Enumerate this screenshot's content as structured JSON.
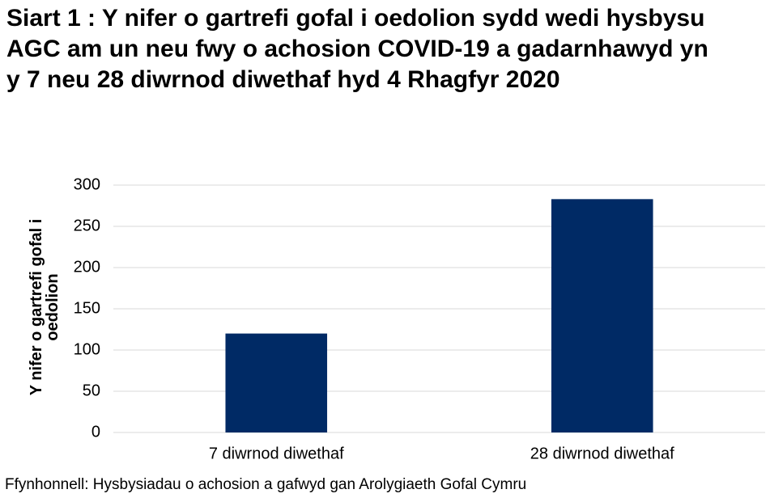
{
  "chart_data": {
    "type": "bar",
    "title": "Siart 1 : Y nifer o gartrefi gofal i oedolion sydd wedi hysbysu AGC am un neu fwy o achosion COVID-19 a gadarnhawyd yn y 7 neu 28 diwrnod diwethaf hyd 4 Rhagfyr 2020",
    "y_label": "Y nifer o gartrefi gofal i oedolion",
    "source": "Ffynhonnell: Hysbysiadau o achosion a gafwyd gan Arolygiaeth Gofal Cymru",
    "categories": [
      "7 diwrnod diwethaf",
      "28 diwrnod diwethaf"
    ],
    "values": [
      120,
      283
    ],
    "color": "#002a65",
    "ylim": [
      0,
      300
    ],
    "yticks": [
      0,
      50,
      100,
      150,
      200,
      250,
      300
    ],
    "grid": true
  }
}
